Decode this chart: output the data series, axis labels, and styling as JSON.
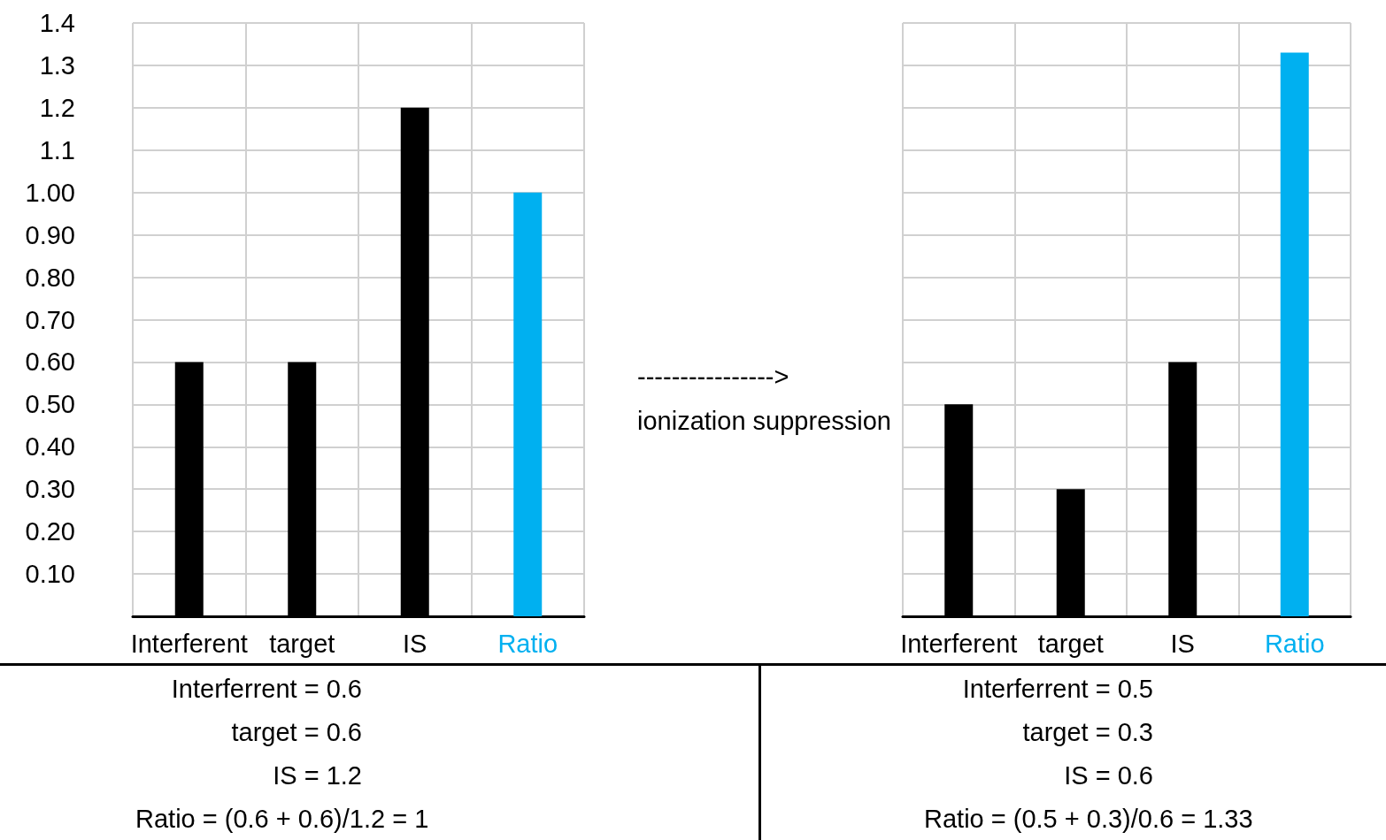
{
  "chart_data": [
    {
      "type": "bar",
      "categories": [
        "Interferent",
        "target",
        "IS",
        "Ratio"
      ],
      "values": [
        0.6,
        0.6,
        1.2,
        1.0
      ],
      "colors": [
        "#000000",
        "#000000",
        "#000000",
        "#00b0f0"
      ],
      "ylim": [
        0,
        1.4
      ],
      "yticks": [
        {
          "value": 0.1,
          "label": "0.10"
        },
        {
          "value": 0.2,
          "label": "0.20"
        },
        {
          "value": 0.3,
          "label": "0.30"
        },
        {
          "value": 0.4,
          "label": "0.40"
        },
        {
          "value": 0.5,
          "label": "0.50"
        },
        {
          "value": 0.6,
          "label": "0.60"
        },
        {
          "value": 0.7,
          "label": "0.70"
        },
        {
          "value": 0.8,
          "label": "0.80"
        },
        {
          "value": 0.9,
          "label": "0.90"
        },
        {
          "value": 1.0,
          "label": "1.00"
        },
        1.1,
        1.2,
        1.3,
        1.4
      ],
      "grid": true,
      "annotations": [
        "---------------->",
        "ionization suppression",
        "Interferrent = 0.6",
        "target = 0.6",
        "IS = 1.2",
        "Ratio = (0.6 + 0.6)/1.2 = 1"
      ]
    },
    {
      "type": "bar",
      "categories": [
        "Interferent",
        "target",
        "IS",
        "Ratio"
      ],
      "values": [
        0.5,
        0.3,
        0.6,
        1.33
      ],
      "colors": [
        "#000000",
        "#000000",
        "#000000",
        "#00b0f0"
      ],
      "ylim": [
        0,
        1.4
      ],
      "grid": true,
      "tick_labels": "x",
      "annotations": [
        "Interferrent = 0.5",
        "target = 0.3",
        "IS = 0.6",
        "Ratio = (0.5 + 0.3)/0.6 = 1.33"
      ]
    }
  ]
}
